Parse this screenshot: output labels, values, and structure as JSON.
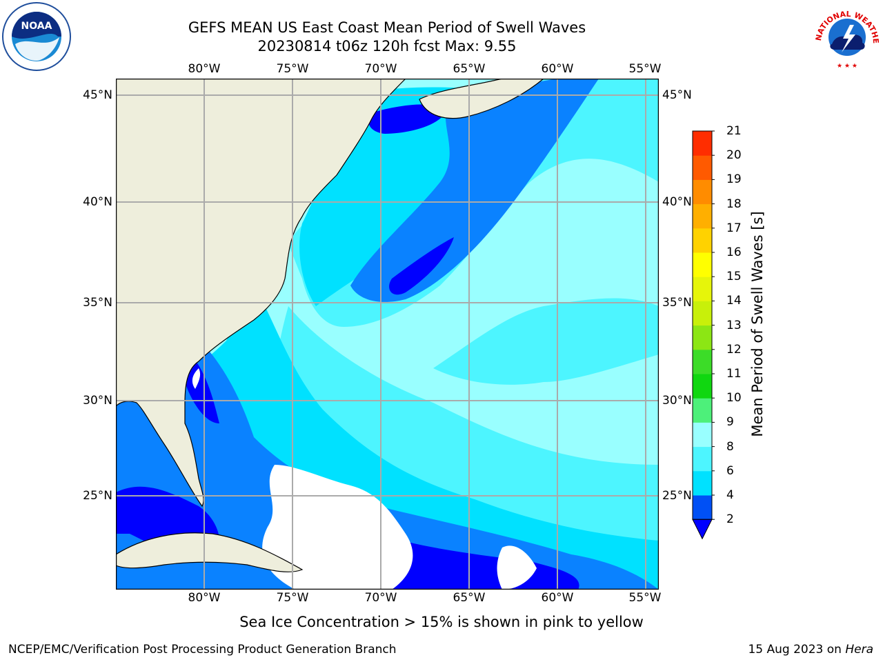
{
  "title": {
    "line1": "GEFS MEAN US East Coast Mean Period of Swell Waves",
    "line2": "20230814 t06z 120h fcst   Max: 9.55"
  },
  "logos": {
    "left": {
      "name": "noaa-logo",
      "text": "NOAA"
    },
    "right": {
      "name": "nws-logo",
      "text": "NATIONAL WEATHER SERVICE"
    }
  },
  "map": {
    "longitude_labels": [
      "80°W",
      "75°W",
      "70°W",
      "65°W",
      "60°W",
      "55°W"
    ],
    "latitude_labels": [
      "45°N",
      "40°N",
      "35°N",
      "30°N",
      "25°N"
    ],
    "extent": {
      "lon_min": -85,
      "lon_max": -54.3,
      "lat_min": 20.3,
      "lat_max": 46
    },
    "colors": {
      "land": "#eeeedc",
      "coast": "#000000",
      "grid": "#aaaaaa",
      "no_data": "#ffffff"
    }
  },
  "colorbar": {
    "label": "Mean Period of Swell Waves [s]",
    "ticks": [
      "2",
      "4",
      "6",
      "8",
      "9",
      "10",
      "11",
      "12",
      "13",
      "14",
      "15",
      "16",
      "17",
      "18",
      "19",
      "20",
      "21"
    ],
    "colors": [
      "#0050f5",
      "#00e1ff",
      "#4df5ff",
      "#99ffff",
      "#4df07a",
      "#10d710",
      "#3cdc28",
      "#8ce614",
      "#c8f00a",
      "#e6f50a",
      "#ffff00",
      "#ffd200",
      "#ffaf00",
      "#ff8c00",
      "#ff5a00",
      "#ff2d00",
      "#ff0000"
    ],
    "under_color": "#0000ff"
  },
  "notes": {
    "ice": "Sea Ice Concentration > 15% is shown in pink to yellow"
  },
  "footer": {
    "left": "NCEP/EMC/Verification Post Processing Product Generation Branch",
    "date": "15 Aug 2023 on ",
    "machine": "Hera"
  }
}
